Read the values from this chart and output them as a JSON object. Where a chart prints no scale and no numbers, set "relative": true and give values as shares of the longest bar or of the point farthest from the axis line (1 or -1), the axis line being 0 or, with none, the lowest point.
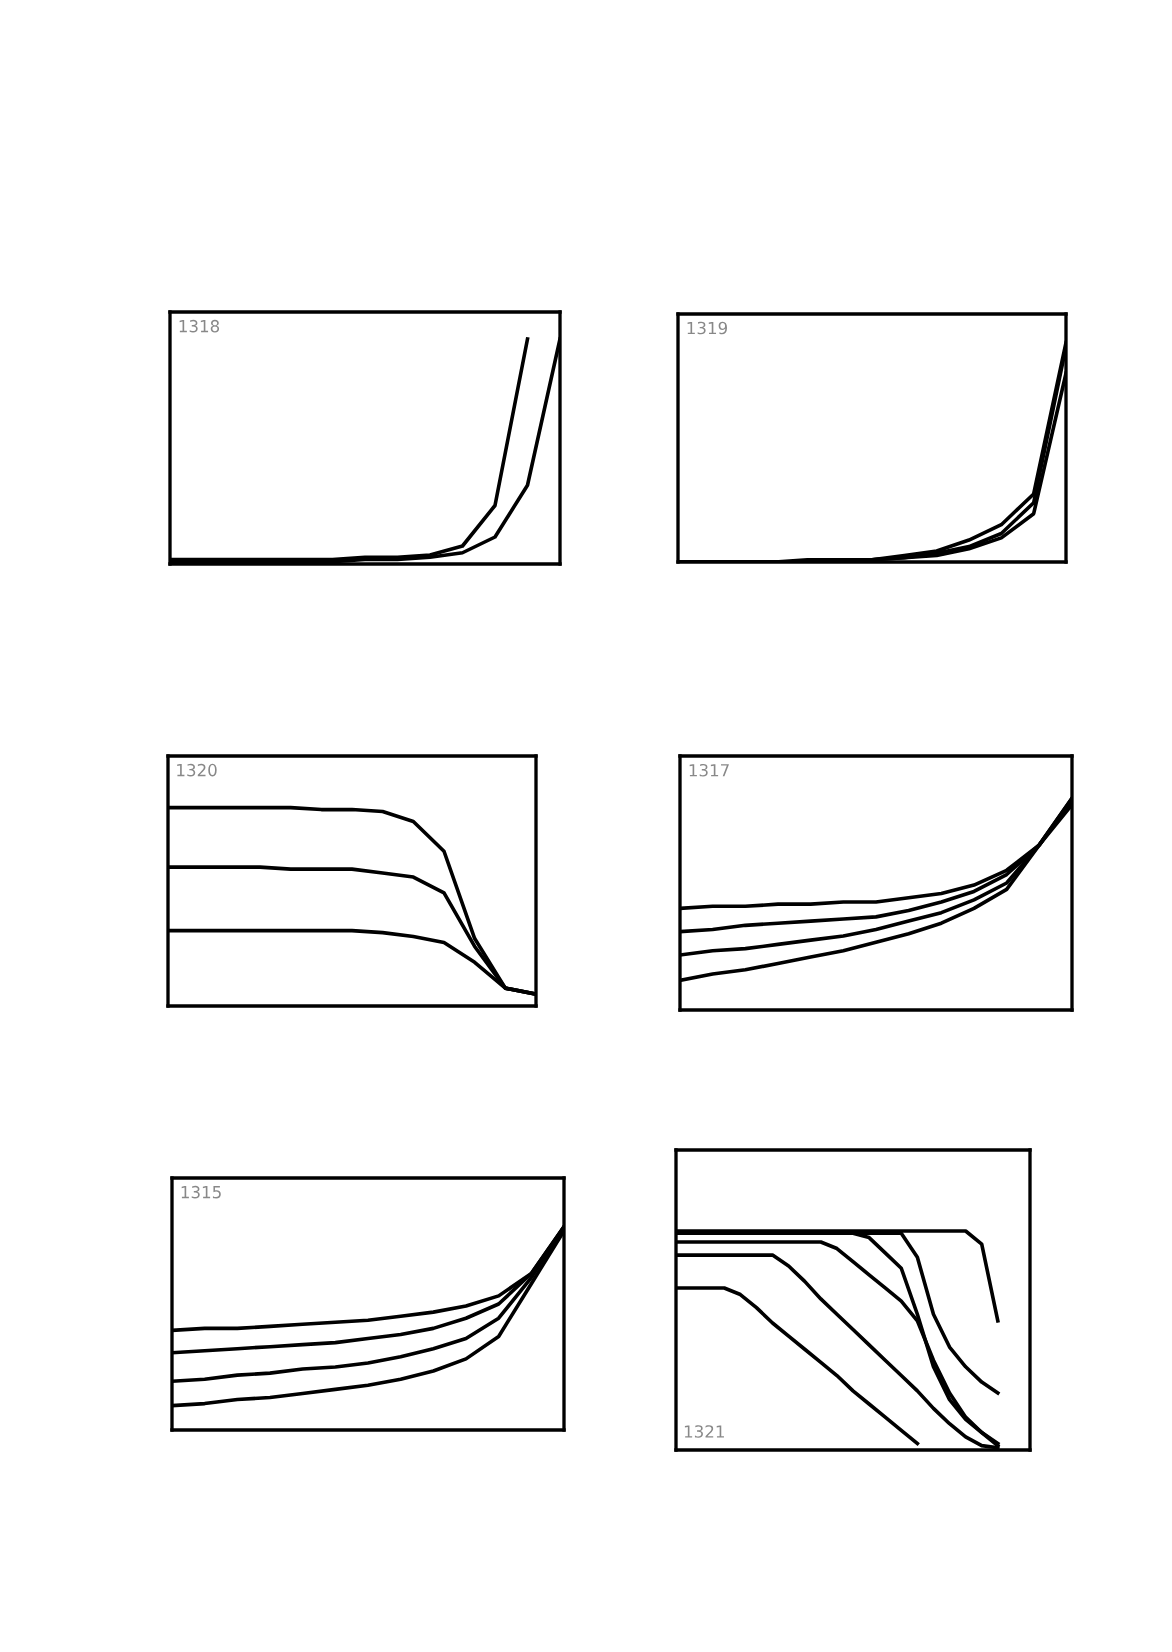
{
  "chart_data": [
    {
      "type": "line",
      "relative": true,
      "annotations": [
        "1318"
      ],
      "categories": [
        null,
        null,
        null,
        null,
        null,
        null,
        null,
        null,
        null,
        null,
        null,
        null,
        null
      ],
      "series": [
        {
          "color": "#000000",
          "values": [
            0.02,
            0.02,
            0.02,
            0.02,
            0.02,
            0.02,
            0.03,
            0.03,
            0.04,
            0.08,
            0.26,
            1.0,
            null
          ]
        },
        {
          "color": "#000000",
          "values": [
            0.01,
            0.01,
            0.01,
            0.01,
            0.01,
            0.01,
            0.02,
            0.02,
            0.03,
            0.05,
            0.12,
            0.35,
            1.0
          ]
        }
      ]
    },
    {
      "type": "line",
      "relative": true,
      "annotations": [
        "1319"
      ],
      "categories": [
        null,
        null,
        null,
        null,
        null,
        null,
        null,
        null,
        null,
        null,
        null,
        null,
        null
      ],
      "series": [
        {
          "color": "#000000",
          "values": [
            0.0,
            0.0,
            0.0,
            0.0,
            0.01,
            0.01,
            0.01,
            0.03,
            0.05,
            0.1,
            0.17,
            0.31,
            1.0
          ]
        },
        {
          "color": "#000000",
          "values": [
            0.0,
            0.0,
            0.0,
            0.0,
            0.0,
            0.01,
            0.01,
            0.02,
            0.04,
            0.07,
            0.13,
            0.27,
            0.98
          ]
        },
        {
          "color": "#000000",
          "values": [
            0.0,
            0.0,
            0.0,
            0.0,
            0.0,
            0.0,
            0.01,
            0.02,
            0.03,
            0.06,
            0.11,
            0.22,
            0.86
          ]
        }
      ]
    },
    {
      "type": "line",
      "relative": true,
      "annotations": [
        "1320"
      ],
      "categories": [
        null,
        null,
        null,
        null,
        null,
        null,
        null,
        null,
        null,
        null,
        null,
        null,
        null
      ],
      "series": [
        {
          "color": "#000000",
          "values": [
            1.0,
            1.0,
            1.0,
            1.0,
            1.0,
            0.99,
            0.99,
            0.98,
            0.93,
            0.78,
            0.34,
            0.09,
            0.06
          ]
        },
        {
          "color": "#000000",
          "values": [
            0.7,
            0.7,
            0.7,
            0.7,
            0.69,
            0.69,
            0.69,
            0.67,
            0.65,
            0.57,
            0.3,
            0.09,
            0.06
          ]
        },
        {
          "color": "#000000",
          "values": [
            0.38,
            0.38,
            0.38,
            0.38,
            0.38,
            0.38,
            0.38,
            0.37,
            0.35,
            0.32,
            0.22,
            0.09,
            0.06
          ]
        }
      ]
    },
    {
      "type": "line",
      "relative": true,
      "annotations": [
        "1317"
      ],
      "categories": [
        null,
        null,
        null,
        null,
        null,
        null,
        null,
        null,
        null,
        null,
        null,
        null,
        null
      ],
      "series": [
        {
          "color": "#000000",
          "values": [
            0.48,
            0.49,
            0.49,
            0.5,
            0.5,
            0.51,
            0.51,
            0.53,
            0.55,
            0.59,
            0.66,
            0.78,
            0.97
          ]
        },
        {
          "color": "#000000",
          "values": [
            0.37,
            0.38,
            0.4,
            0.41,
            0.42,
            0.43,
            0.44,
            0.47,
            0.51,
            0.56,
            0.64,
            0.78,
            0.99
          ]
        },
        {
          "color": "#000000",
          "values": [
            0.26,
            0.28,
            0.29,
            0.31,
            0.33,
            0.35,
            0.38,
            0.42,
            0.46,
            0.52,
            0.6,
            0.78,
            1.0
          ]
        },
        {
          "color": "#000000",
          "values": [
            0.14,
            0.17,
            0.19,
            0.22,
            0.25,
            0.28,
            0.32,
            0.36,
            0.41,
            0.48,
            0.57,
            0.78,
            1.0
          ]
        }
      ]
    },
    {
      "type": "line",
      "relative": true,
      "annotations": [
        "1315"
      ],
      "categories": [
        null,
        null,
        null,
        null,
        null,
        null,
        null,
        null,
        null,
        null,
        null,
        null,
        null
      ],
      "series": [
        {
          "color": "#000000",
          "values": [
            0.49,
            0.5,
            0.5,
            0.51,
            0.52,
            0.53,
            0.54,
            0.56,
            0.58,
            0.61,
            0.66,
            0.77,
            1.0
          ]
        },
        {
          "color": "#000000",
          "values": [
            0.38,
            0.39,
            0.4,
            0.41,
            0.42,
            0.43,
            0.45,
            0.47,
            0.5,
            0.55,
            0.62,
            0.77,
            1.0
          ]
        },
        {
          "color": "#000000",
          "values": [
            0.24,
            0.25,
            0.27,
            0.28,
            0.3,
            0.31,
            0.33,
            0.36,
            0.4,
            0.45,
            0.55,
            0.75,
            1.0
          ]
        },
        {
          "color": "#000000",
          "values": [
            0.12,
            0.13,
            0.15,
            0.16,
            0.18,
            0.2,
            0.22,
            0.25,
            0.29,
            0.35,
            0.46,
            0.72,
            0.98
          ]
        }
      ]
    },
    {
      "type": "line",
      "relative": true,
      "annotations": [
        "1321"
      ],
      "categories": [
        null,
        null,
        null,
        null,
        null,
        null,
        null,
        null,
        null,
        null,
        null,
        null,
        null,
        null,
        null,
        null,
        null,
        null,
        null,
        null,
        null,
        null,
        null
      ],
      "series": [
        {
          "color": "#000000",
          "values": [
            1.0,
            1.0,
            1.0,
            1.0,
            1.0,
            1.0,
            1.0,
            1.0,
            1.0,
            1.0,
            1.0,
            1.0,
            1.0,
            1.0,
            1.0,
            1.0,
            1.0,
            1.0,
            1.0,
            0.94,
            0.59,
            null,
            null
          ]
        },
        {
          "color": "#000000",
          "values": [
            0.99,
            0.99,
            0.99,
            0.99,
            0.99,
            0.99,
            0.99,
            0.99,
            0.99,
            0.99,
            0.99,
            0.99,
            0.99,
            0.99,
            0.99,
            0.88,
            0.62,
            0.47,
            0.38,
            0.31,
            0.26,
            null,
            null
          ]
        },
        {
          "color": "#000000",
          "values": [
            0.99,
            0.99,
            0.99,
            0.99,
            0.99,
            0.99,
            0.99,
            0.99,
            0.99,
            0.99,
            0.99,
            0.99,
            0.97,
            0.9,
            0.83,
            0.62,
            0.38,
            0.23,
            0.14,
            0.08,
            0.02,
            null,
            null
          ]
        },
        {
          "color": "#000000",
          "values": [
            0.95,
            0.95,
            0.95,
            0.95,
            0.95,
            0.95,
            0.95,
            0.95,
            0.95,
            0.95,
            0.92,
            0.86,
            0.8,
            0.74,
            0.68,
            0.59,
            0.41,
            0.26,
            0.15,
            0.08,
            0.03,
            null,
            null
          ]
        },
        {
          "color": "#000000",
          "values": [
            0.89,
            0.89,
            0.89,
            0.89,
            0.89,
            0.89,
            0.89,
            0.84,
            0.77,
            0.69,
            0.62,
            0.55,
            0.48,
            0.41,
            0.34,
            0.27,
            0.19,
            0.12,
            0.06,
            0.02,
            0.01,
            null,
            null
          ]
        },
        {
          "color": "#000000",
          "values": [
            0.74,
            0.74,
            0.74,
            0.74,
            0.71,
            0.65,
            0.58,
            0.52,
            0.46,
            0.4,
            0.34,
            0.27,
            0.21,
            0.15,
            0.09,
            0.03,
            null,
            null,
            null,
            null,
            null,
            null,
            null
          ]
        }
      ]
    }
  ]
}
